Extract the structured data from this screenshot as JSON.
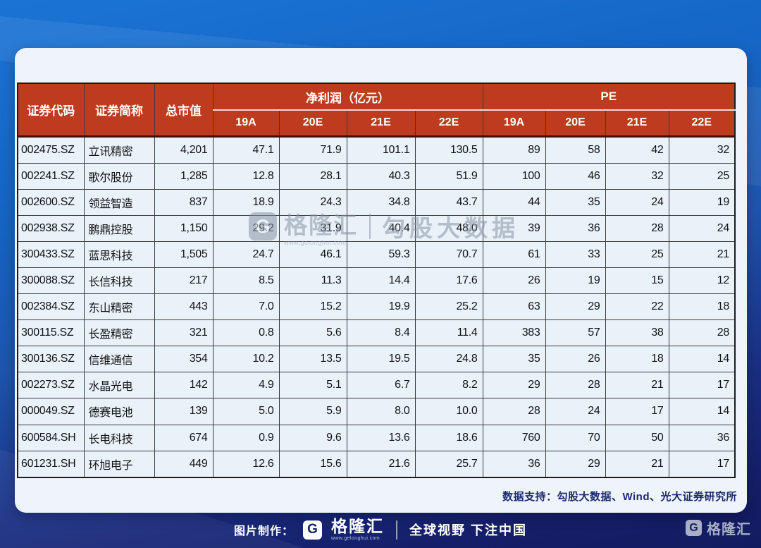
{
  "table": {
    "headers": {
      "code": "证券代码",
      "name": "证券简称",
      "market_cap": "总市值",
      "net_profit_group": "净利润（亿元）",
      "pe_group": "PE",
      "periods": [
        "19A",
        "20E",
        "21E",
        "22E"
      ]
    },
    "rows": [
      {
        "code": "002475.SZ",
        "name": "立讯精密",
        "market_cap": "4,201",
        "net_profit": [
          "47.1",
          "71.9",
          "101.1",
          "130.5"
        ],
        "pe": [
          "89",
          "58",
          "42",
          "32"
        ]
      },
      {
        "code": "002241.SZ",
        "name": "歌尔股份",
        "market_cap": "1,285",
        "net_profit": [
          "12.8",
          "28.1",
          "40.3",
          "51.9"
        ],
        "pe": [
          "100",
          "46",
          "32",
          "25"
        ]
      },
      {
        "code": "002600.SZ",
        "name": "领益智造",
        "market_cap": "837",
        "net_profit": [
          "18.9",
          "24.3",
          "34.8",
          "43.7"
        ],
        "pe": [
          "44",
          "35",
          "24",
          "19"
        ]
      },
      {
        "code": "002938.SZ",
        "name": "鹏鼎控股",
        "market_cap": "1,150",
        "net_profit": [
          "29.2",
          "31.9",
          "40.4",
          "48.0"
        ],
        "pe": [
          "39",
          "36",
          "28",
          "24"
        ]
      },
      {
        "code": "300433.SZ",
        "name": "蓝思科技",
        "market_cap": "1,505",
        "net_profit": [
          "24.7",
          "46.1",
          "59.3",
          "70.7"
        ],
        "pe": [
          "61",
          "33",
          "25",
          "21"
        ]
      },
      {
        "code": "300088.SZ",
        "name": "长信科技",
        "market_cap": "217",
        "net_profit": [
          "8.5",
          "11.3",
          "14.4",
          "17.6"
        ],
        "pe": [
          "26",
          "19",
          "15",
          "12"
        ]
      },
      {
        "code": "002384.SZ",
        "name": "东山精密",
        "market_cap": "443",
        "net_profit": [
          "7.0",
          "15.2",
          "19.9",
          "25.2"
        ],
        "pe": [
          "63",
          "29",
          "22",
          "18"
        ]
      },
      {
        "code": "300115.SZ",
        "name": "长盈精密",
        "market_cap": "321",
        "net_profit": [
          "0.8",
          "5.6",
          "8.4",
          "11.4"
        ],
        "pe": [
          "383",
          "57",
          "38",
          "28"
        ]
      },
      {
        "code": "300136.SZ",
        "name": "信维通信",
        "market_cap": "354",
        "net_profit": [
          "10.2",
          "13.5",
          "19.5",
          "24.8"
        ],
        "pe": [
          "35",
          "26",
          "18",
          "14"
        ]
      },
      {
        "code": "002273.SZ",
        "name": "水晶光电",
        "market_cap": "142",
        "net_profit": [
          "4.9",
          "5.1",
          "6.7",
          "8.2"
        ],
        "pe": [
          "29",
          "28",
          "21",
          "17"
        ]
      },
      {
        "code": "000049.SZ",
        "name": "德赛电池",
        "market_cap": "139",
        "net_profit": [
          "5.0",
          "5.9",
          "8.0",
          "10.0"
        ],
        "pe": [
          "28",
          "24",
          "17",
          "14"
        ]
      },
      {
        "code": "600584.SH",
        "name": "长电科技",
        "market_cap": "674",
        "net_profit": [
          "0.9",
          "9.6",
          "13.6",
          "18.6"
        ],
        "pe": [
          "760",
          "70",
          "50",
          "36"
        ]
      },
      {
        "code": "601231.SH",
        "name": "环旭电子",
        "market_cap": "449",
        "net_profit": [
          "12.6",
          "15.6",
          "21.6",
          "25.7"
        ],
        "pe": [
          "36",
          "29",
          "21",
          "17"
        ]
      }
    ]
  },
  "footer_note": "数据支持：勾股大数据、Wind、光大证券研究所",
  "watermark": {
    "logo_letter": "G",
    "brand": "格隆汇",
    "url": "www.gelonghui.com",
    "suffix": "勾股大数据"
  },
  "bottom_bar": {
    "made_by_label": "图片制作：",
    "logo_letter": "G",
    "brand": "格隆汇",
    "brand_url": "www.gelonghui.com",
    "slogan": "全球视野 下注中国",
    "corner_logo_letter": "G",
    "corner_brand": "格隆汇"
  },
  "colors": {
    "header_red": "#bf3b1f",
    "bg_blue_top": "#1b74d4",
    "bg_navy_bottom": "#131b60",
    "card_bg": "#eef4fa",
    "row_bg": "#e9f1f9",
    "footer_note_navy": "#1b2b6e"
  },
  "chart_data": {
    "type": "table",
    "title": "",
    "column_groups": [
      "净利润（亿元）",
      "PE"
    ],
    "columns": [
      "证券代码",
      "证券简称",
      "总市值",
      "净利润19A",
      "净利润20E",
      "净利润21E",
      "净利润22E",
      "PE19A",
      "PE20E",
      "PE21E",
      "PE22E"
    ],
    "rows": [
      [
        "002475.SZ",
        "立讯精密",
        4201,
        47.1,
        71.9,
        101.1,
        130.5,
        89,
        58,
        42,
        32
      ],
      [
        "002241.SZ",
        "歌尔股份",
        1285,
        12.8,
        28.1,
        40.3,
        51.9,
        100,
        46,
        32,
        25
      ],
      [
        "002600.SZ",
        "领益智造",
        837,
        18.9,
        24.3,
        34.8,
        43.7,
        44,
        35,
        24,
        19
      ],
      [
        "002938.SZ",
        "鹏鼎控股",
        1150,
        29.2,
        31.9,
        40.4,
        48.0,
        39,
        36,
        28,
        24
      ],
      [
        "300433.SZ",
        "蓝思科技",
        1505,
        24.7,
        46.1,
        59.3,
        70.7,
        61,
        33,
        25,
        21
      ],
      [
        "300088.SZ",
        "长信科技",
        217,
        8.5,
        11.3,
        14.4,
        17.6,
        26,
        19,
        15,
        12
      ],
      [
        "002384.SZ",
        "东山精密",
        443,
        7.0,
        15.2,
        19.9,
        25.2,
        63,
        29,
        22,
        18
      ],
      [
        "300115.SZ",
        "长盈精密",
        321,
        0.8,
        5.6,
        8.4,
        11.4,
        383,
        57,
        38,
        28
      ],
      [
        "300136.SZ",
        "信维通信",
        354,
        10.2,
        13.5,
        19.5,
        24.8,
        35,
        26,
        18,
        14
      ],
      [
        "002273.SZ",
        "水晶光电",
        142,
        4.9,
        5.1,
        6.7,
        8.2,
        29,
        28,
        21,
        17
      ],
      [
        "000049.SZ",
        "德赛电池",
        139,
        5.0,
        5.9,
        8.0,
        10.0,
        28,
        24,
        17,
        14
      ],
      [
        "600584.SH",
        "长电科技",
        674,
        0.9,
        9.6,
        13.6,
        18.6,
        760,
        70,
        50,
        36
      ],
      [
        "601231.SH",
        "环旭电子",
        449,
        12.6,
        15.6,
        21.6,
        25.7,
        36,
        29,
        21,
        17
      ]
    ]
  }
}
